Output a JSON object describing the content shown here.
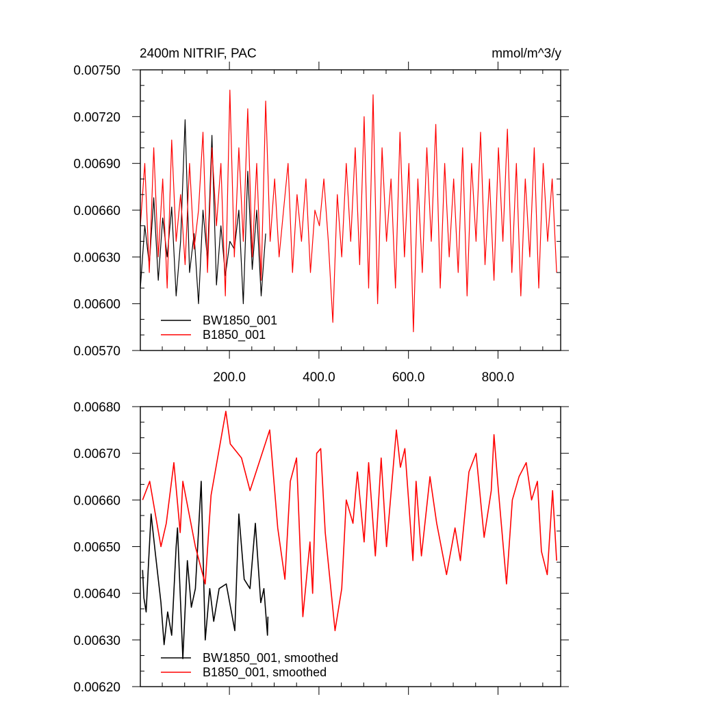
{
  "chart_data": [
    {
      "type": "line",
      "title": "2400m NITRIF, PAC",
      "units": "mmol/m^3/y",
      "xlim": [
        1,
        940
      ],
      "ylim": [
        0.0057,
        0.0075
      ],
      "x_ticks": [
        200,
        400,
        600,
        800
      ],
      "x_tick_labels": [
        "200.0",
        "400.0",
        "600.0",
        "800.0"
      ],
      "y_ticks": [
        0.0057,
        0.006,
        0.0063,
        0.0066,
        0.0069,
        0.0072,
        0.0075
      ],
      "y_tick_labels": [
        "0.00570",
        "0.00600",
        "0.00630",
        "0.00660",
        "0.00690",
        "0.00720",
        "0.00750"
      ],
      "legend_position": "bottom-left",
      "series": [
        {
          "name": "BW1850_001",
          "color": "#000000",
          "x_start": 1,
          "x_step": 10,
          "values": [
            0.0061,
            0.0065,
            0.00625,
            0.00668,
            0.00615,
            0.00655,
            0.0063,
            0.00662,
            0.00605,
            0.0064,
            0.00718,
            0.0062,
            0.00645,
            0.006,
            0.0066,
            0.00628,
            0.00708,
            0.00612,
            0.0065,
            0.00618,
            0.0064,
            0.00635,
            0.0066,
            0.006,
            0.00685,
            0.00622,
            0.0066,
            0.00605,
            0.00645
          ]
        },
        {
          "name": "B1850_001",
          "color": "#ff0000",
          "x_start": 1,
          "x_step": 10,
          "values": [
            0.0065,
            0.0069,
            0.0062,
            0.007,
            0.0063,
            0.0068,
            0.0061,
            0.00705,
            0.0064,
            0.0067,
            0.00625,
            0.0069,
            0.00635,
            0.0066,
            0.0071,
            0.0062,
            0.007,
            0.0065,
            0.0069,
            0.00605,
            0.00737,
            0.0063,
            0.007,
            0.0064,
            0.00725,
            0.0063,
            0.0069,
            0.00615,
            0.0073,
            0.0064,
            0.0068,
            0.0063,
            0.0066,
            0.0069,
            0.0062,
            0.0067,
            0.0064,
            0.0068,
            0.0062,
            0.0066,
            0.0065,
            0.0068,
            0.0064,
            0.00588,
            0.0067,
            0.0063,
            0.0069,
            0.0064,
            0.007,
            0.00625,
            0.0072,
            0.0061,
            0.00734,
            0.006,
            0.007,
            0.0064,
            0.0068,
            0.0061,
            0.0071,
            0.0063,
            0.0069,
            0.00582,
            0.0068,
            0.0062,
            0.007,
            0.0064,
            0.00715,
            0.0061,
            0.0069,
            0.0063,
            0.0068,
            0.0062,
            0.007,
            0.00605,
            0.0069,
            0.0064,
            0.0071,
            0.00625,
            0.0068,
            0.00615,
            0.007,
            0.0064,
            0.00712,
            0.0062,
            0.0069,
            0.00605,
            0.0068,
            0.0063,
            0.007,
            0.0061,
            0.0069,
            0.0064,
            0.0068,
            0.0062
          ]
        }
      ]
    },
    {
      "type": "line",
      "xlim": [
        1,
        940
      ],
      "ylim": [
        0.0062,
        0.0068
      ],
      "x_ticks": [
        200,
        400,
        600,
        800
      ],
      "y_ticks": [
        0.0062,
        0.0063,
        0.0064,
        0.0065,
        0.0066,
        0.0067,
        0.0068
      ],
      "y_tick_labels": [
        "0.00620",
        "0.00630",
        "0.00640",
        "0.00650",
        "0.00660",
        "0.00670",
        "0.00680"
      ],
      "legend_position": "bottom-left",
      "series": [
        {
          "name": "BW1850_001, smoothed",
          "color": "#000000",
          "x": [
            6,
            9,
            14,
            19,
            25,
            34,
            47,
            54,
            62,
            71,
            81,
            84,
            96,
            106,
            115,
            124,
            137,
            146,
            156,
            165,
            177,
            193,
            212,
            221,
            233,
            246,
            258,
            270,
            277,
            285,
            286
          ],
          "y": [
            0.00645,
            0.00639,
            0.00636,
            0.00646,
            0.00657,
            0.00649,
            0.00638,
            0.00629,
            0.00636,
            0.00631,
            0.0065,
            0.00654,
            0.00626,
            0.00647,
            0.00637,
            0.00641,
            0.00664,
            0.0063,
            0.00641,
            0.00634,
            0.00641,
            0.00642,
            0.00632,
            0.00657,
            0.00643,
            0.00641,
            0.00655,
            0.00638,
            0.00641,
            0.00631,
            0.00635
          ]
        },
        {
          "name": "B1850_001, smoothed",
          "color": "#ff0000",
          "x": [
            6,
            22,
            47,
            59,
            76,
            90,
            96,
            124,
            146,
            159,
            192,
            202,
            227,
            246,
            290,
            308,
            324,
            336,
            350,
            364,
            380,
            386,
            395,
            404,
            414,
            436,
            451,
            461,
            476,
            486,
            501,
            511,
            526,
            539,
            551,
            573,
            582,
            592,
            610,
            617,
            629,
            648,
            663,
            685,
            704,
            716,
            735,
            751,
            769,
            785,
            791,
            800,
            819,
            832,
            847,
            863,
            875,
            888,
            897,
            910,
            922,
            931
          ],
          "y": [
            0.0066,
            0.00664,
            0.0065,
            0.00655,
            0.00668,
            0.00653,
            0.00664,
            0.0065,
            0.00642,
            0.00661,
            0.00679,
            0.00672,
            0.00669,
            0.00662,
            0.00675,
            0.00654,
            0.00643,
            0.00664,
            0.00669,
            0.00635,
            0.00651,
            0.0064,
            0.0067,
            0.00671,
            0.00653,
            0.00632,
            0.00641,
            0.0066,
            0.00655,
            0.00666,
            0.00651,
            0.00668,
            0.00648,
            0.00669,
            0.0065,
            0.00675,
            0.00667,
            0.00671,
            0.00647,
            0.00664,
            0.00648,
            0.00665,
            0.00655,
            0.00644,
            0.00654,
            0.00647,
            0.00666,
            0.0067,
            0.00652,
            0.00662,
            0.00674,
            0.00663,
            0.00642,
            0.0066,
            0.00665,
            0.00668,
            0.0066,
            0.00664,
            0.00649,
            0.00644,
            0.00662,
            0.00647
          ]
        }
      ]
    }
  ]
}
